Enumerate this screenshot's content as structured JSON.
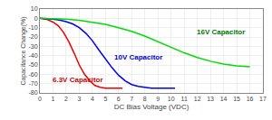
{
  "chart_data": {
    "type": "line",
    "xlabel": "DC Bias Voltage (VDC)",
    "ylabel": "Capacitance Change(%)",
    "xlim": [
      0,
      17
    ],
    "ylim": [
      -80,
      10
    ],
    "xticks": [
      0,
      1,
      2,
      3,
      4,
      5,
      6,
      7,
      8,
      9,
      10,
      11,
      12,
      13,
      14,
      15,
      16,
      17
    ],
    "yticks": [
      10,
      0,
      -10,
      -20,
      -30,
      -40,
      -50,
      -60,
      -70,
      -80
    ],
    "grid": true,
    "series": [
      {
        "name": "6.3V Capacitor",
        "color": "#ee0000",
        "x": [
          0,
          0.3,
          0.6,
          1.0,
          1.4,
          1.8,
          2.2,
          2.6,
          3.0,
          3.4,
          3.8,
          4.2,
          4.6,
          5.0,
          5.4,
          5.8,
          6.2,
          6.3
        ],
        "values": [
          0,
          -0.5,
          -1.5,
          -4,
          -8,
          -15,
          -25,
          -37,
          -50,
          -60,
          -67,
          -72,
          -74,
          -75,
          -75,
          -75,
          -75,
          -75
        ]
      },
      {
        "name": "10V Capacitor",
        "color": "#0000ee",
        "x": [
          0,
          0.5,
          1,
          1.5,
          2,
          2.5,
          3,
          3.5,
          4,
          4.5,
          5,
          5.5,
          6,
          6.5,
          7,
          7.5,
          8,
          8.5,
          9,
          9.5,
          10,
          10.3
        ],
        "values": [
          0,
          -0.3,
          -0.8,
          -1.8,
          -3.5,
          -6,
          -10,
          -16,
          -24,
          -34,
          -44,
          -53,
          -61,
          -67,
          -71,
          -73,
          -74,
          -75,
          -75,
          -75,
          -75,
          -75
        ]
      },
      {
        "name": "16V Capacitor",
        "color": "#00dd00",
        "x": [
          0,
          1,
          2,
          3,
          4,
          5,
          6,
          7,
          8,
          9,
          10,
          11,
          12,
          13,
          14,
          15,
          16
        ],
        "values": [
          0,
          -0.3,
          -0.8,
          -2,
          -4,
          -6.5,
          -10,
          -14,
          -19,
          -25,
          -31,
          -37,
          -42,
          -46,
          -49,
          -51,
          -52
        ]
      }
    ],
    "annotations": [
      {
        "text": "6.3V Capacitor",
        "x": 0.8,
        "y": -66,
        "color": "#cc0000"
      },
      {
        "text": "10V Capacitor",
        "x": 5.5,
        "y": -42,
        "color": "#0000cc"
      },
      {
        "text": "16V Capacitor",
        "x": 11.8,
        "y": -15,
        "color": "#007700"
      }
    ]
  }
}
